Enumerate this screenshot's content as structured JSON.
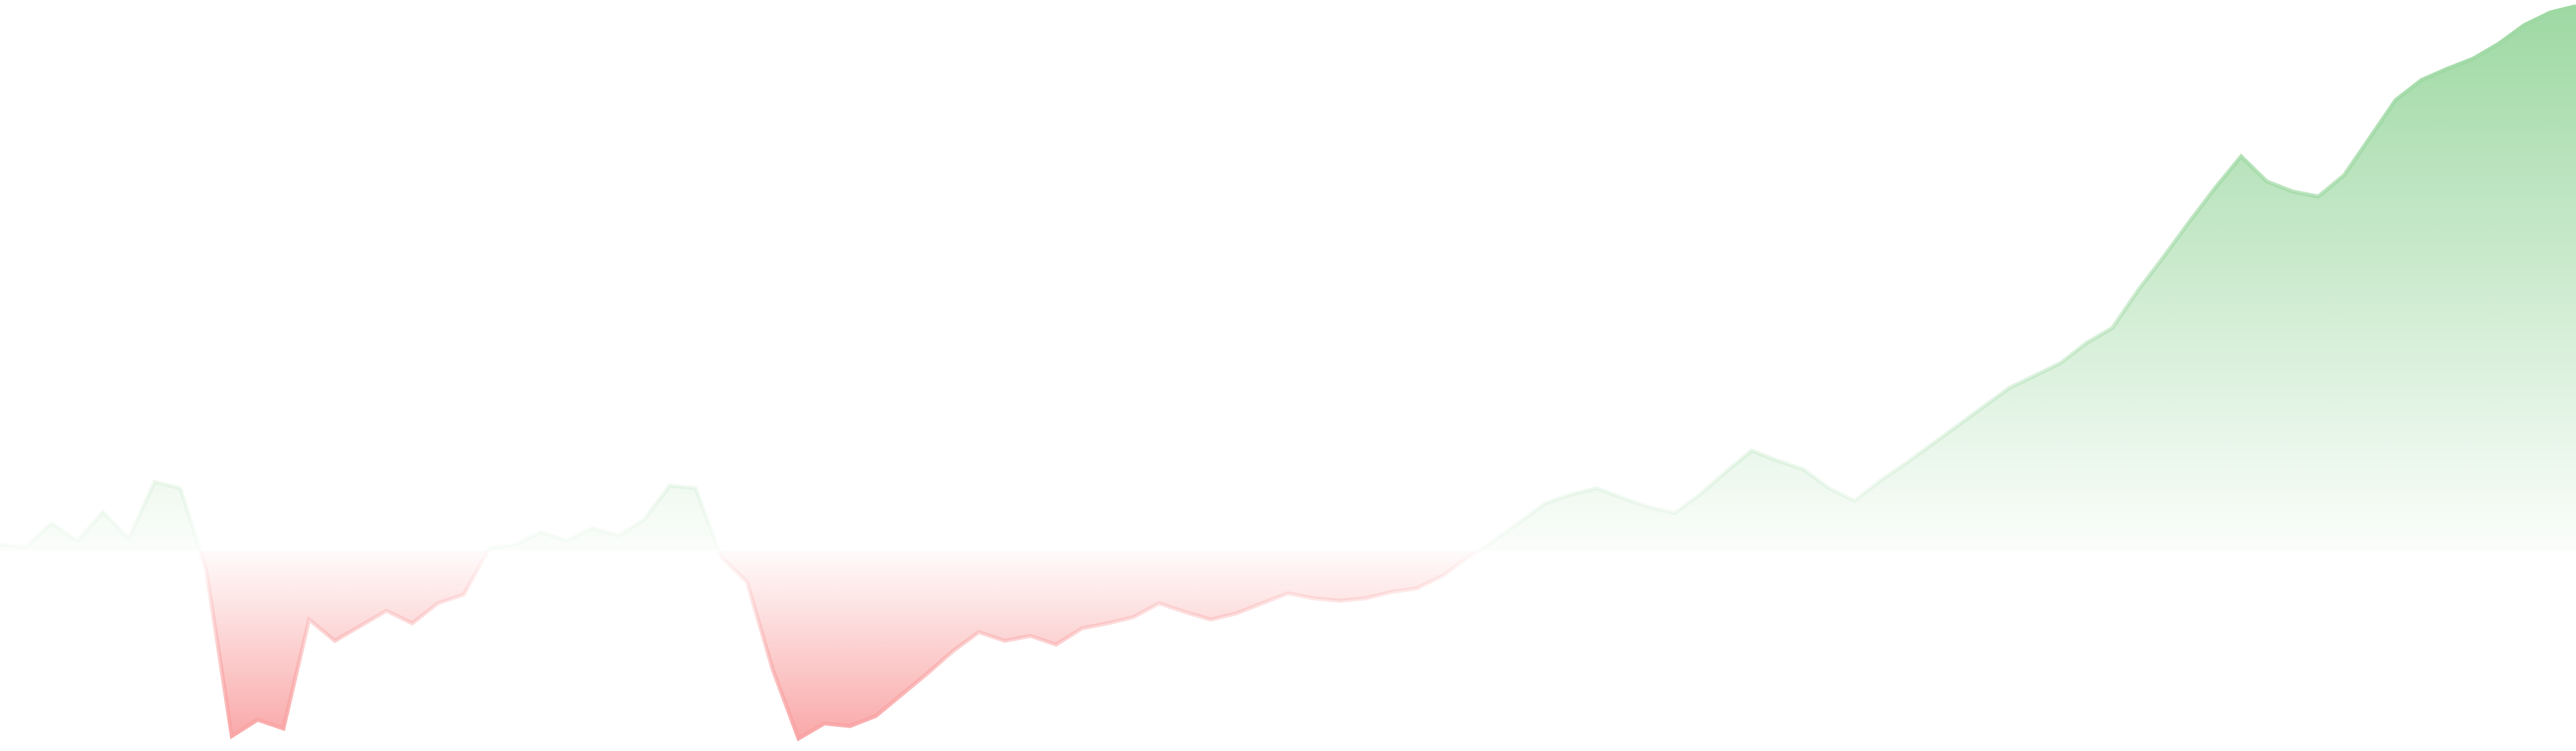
{
  "chart_data": {
    "type": "area",
    "baseline": 0,
    "x": [
      0,
      4,
      8,
      12,
      16,
      20,
      24,
      28,
      32,
      36,
      40,
      44,
      48,
      52,
      56,
      60,
      64,
      68,
      72,
      76,
      80,
      84,
      88,
      92,
      96,
      100,
      104,
      108,
      112,
      116,
      120,
      124,
      128,
      132,
      136,
      140,
      144,
      148,
      152,
      156,
      160,
      164,
      168,
      172,
      176,
      180,
      184,
      188,
      192,
      196,
      200,
      204,
      208,
      212,
      216,
      220,
      224,
      228,
      232,
      236,
      240,
      244,
      248,
      252,
      256,
      260,
      264,
      268,
      272,
      276,
      280,
      284,
      288,
      292,
      296,
      300,
      304,
      308,
      312,
      316,
      320,
      324,
      328,
      332,
      336,
      340,
      344,
      348,
      352,
      356,
      360,
      364,
      368,
      372,
      376,
      380,
      384,
      388,
      392,
      396,
      400
    ],
    "values": [
      0.5,
      0.3,
      2.2,
      0.8,
      3.1,
      1.0,
      5.5,
      5.0,
      -1.5,
      -14.8,
      -13.5,
      -14.2,
      -5.5,
      -7.2,
      -6.0,
      -4.8,
      -5.8,
      -4.2,
      -3.5,
      0.2,
      0.5,
      1.5,
      0.8,
      1.8,
      1.2,
      2.5,
      5.2,
      5.0,
      -0.5,
      -2.5,
      -9.5,
      -15.0,
      -13.8,
      -14.0,
      -13.2,
      -11.5,
      -9.8,
      -8.0,
      -6.5,
      -7.2,
      -6.8,
      -7.5,
      -6.2,
      -5.8,
      -5.3,
      -4.2,
      -4.9,
      -5.5,
      -5.0,
      -4.2,
      -3.4,
      -3.8,
      -4.0,
      -3.8,
      -3.3,
      -3.0,
      -2.0,
      -0.5,
      0.8,
      2.3,
      3.8,
      4.5,
      5.0,
      4.2,
      3.5,
      3.0,
      4.5,
      6.3,
      8.0,
      7.2,
      6.5,
      5.0,
      4.0,
      5.6,
      7.0,
      8.5,
      10.0,
      11.5,
      13.0,
      14.0,
      15.0,
      16.6,
      17.8,
      20.8,
      23.5,
      26.3,
      29.0,
      31.5,
      29.5,
      28.7,
      28.3,
      30.0,
      33.0,
      36.0,
      37.6,
      38.5,
      39.3,
      40.5,
      42.0,
      43.0,
      43.5
    ],
    "ylim": [
      -16,
      44
    ],
    "positive_color": "#9dd8a2",
    "negative_color": "#f9a3a3",
    "grid": false,
    "legend": "none"
  }
}
